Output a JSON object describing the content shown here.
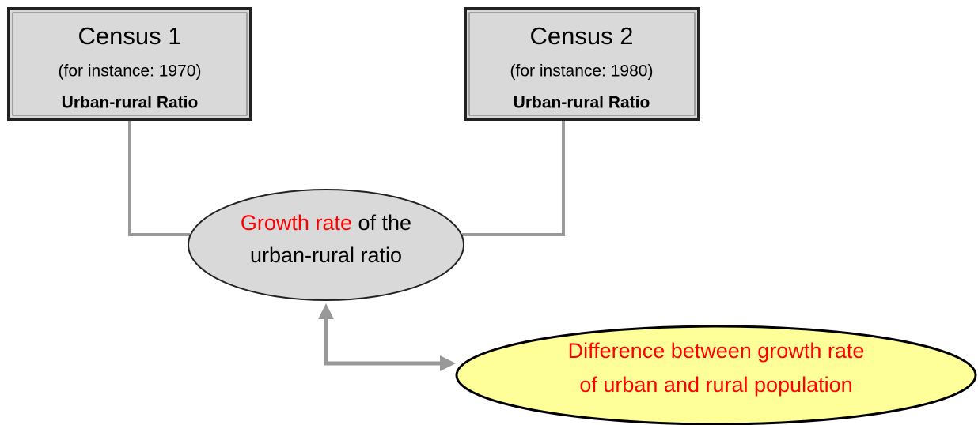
{
  "nodes": [
    {
      "title": "Census 1",
      "subtitle": "(for instance: 1970)",
      "label": "Urban-rural Ratio"
    },
    {
      "title": "Census 2",
      "subtitle": "(for instance: 1980)",
      "label": "Urban-rural Ratio"
    }
  ],
  "center": {
    "highlight": "Growth rate",
    "rest": "of the",
    "line2": "urban-rural ratio"
  },
  "note": {
    "line1": "Difference between growth rate",
    "line2": "of urban and rural population"
  }
}
